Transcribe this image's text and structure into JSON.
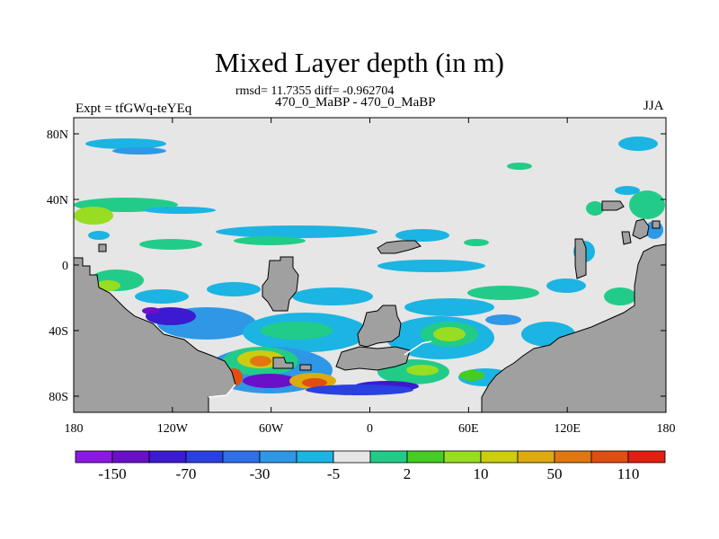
{
  "header": {
    "title": "Mixed Layer depth (in m)",
    "stats": "rmsd= 11.7355 diff= -0.962704",
    "subtitle": "470_0_MaBP - 470_0_MaBP",
    "experiment": "Expt = tfGWq-teYEq",
    "season": "JJA"
  },
  "map": {
    "y_ticks": [
      "80N",
      "40N",
      "0",
      "40S",
      "80S"
    ],
    "x_ticks": [
      "180",
      "120W",
      "60W",
      "0",
      "60E",
      "120E",
      "180"
    ],
    "ocean_color": "#e6e6e6",
    "land_color": "#a0a0a0"
  },
  "colorbar": {
    "colors": [
      "#8a1ae0",
      "#6a10c8",
      "#3c1ad0",
      "#2a40e0",
      "#2f6fe8",
      "#2e98e6",
      "#1cb4e2",
      "#e6e6e6",
      "#22cc88",
      "#44cc22",
      "#99dd22",
      "#cccc11",
      "#ddaa11",
      "#e07711",
      "#e04e11",
      "#e02010"
    ],
    "labels": [
      "-150",
      "-70",
      "-30",
      "-5",
      "2",
      "10",
      "50",
      "110"
    ]
  }
}
